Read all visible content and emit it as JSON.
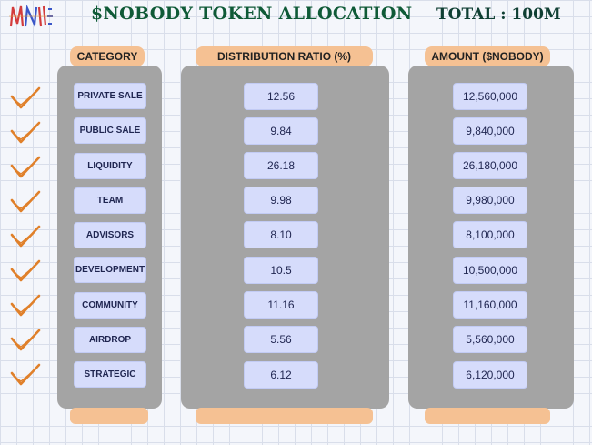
{
  "header": {
    "title": "$NOBODY TOKEN ALLOCATION",
    "total": "TOTAL : 100M"
  },
  "columns": {
    "category": "CATEGORY",
    "ratio": "DISTRIBUTION RATIO (%)",
    "amount": "AMOUNT ($NOBODY)"
  },
  "rows": [
    {
      "category": "PRIVATE SALE",
      "ratio": "12.56",
      "amount": "12,560,000"
    },
    {
      "category": "PUBLIC SALE",
      "ratio": "9.84",
      "amount": "9,840,000"
    },
    {
      "category": "LIQUIDITY",
      "ratio": "26.18",
      "amount": "26,180,000"
    },
    {
      "category": "TEAM",
      "ratio": "9.98",
      "amount": "9,980,000"
    },
    {
      "category": "ADVISORS",
      "ratio": "8.10",
      "amount": "8,100,000"
    },
    {
      "category": "DEVELOPMENT",
      "ratio": "10.5",
      "amount": "10,500,000"
    },
    {
      "category": "COMMUNITY",
      "ratio": "11.16",
      "amount": "11,160,000"
    },
    {
      "category": "AIRDROP",
      "ratio": "5.56",
      "amount": "5,560,000"
    },
    {
      "category": "STRATEGIC",
      "ratio": "6.12",
      "amount": "6,120,000"
    }
  ],
  "icons": {
    "row_marker": "checkmark-icon",
    "logo": "nobody-logo-icon"
  },
  "colors": {
    "title": "#0f5a37",
    "header_tab": "#f5c193",
    "panel": "#a4a4a4",
    "cell": "#d6dcfb",
    "checkmark": "#e0802a"
  }
}
